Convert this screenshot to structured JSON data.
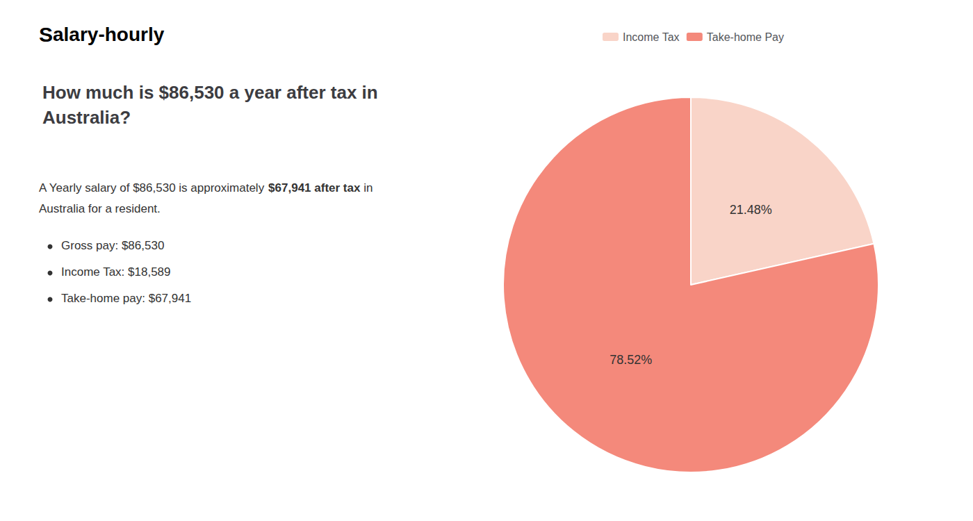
{
  "chart_data": {
    "type": "pie",
    "title": "How much is $86,530 a year after tax in Australia?",
    "annotations": [
      "S",
      "alary-hourly",
      "A Yearly salary of $86,530 is approximately ",
      "$67,941 after tax",
      " in",
      "Australia for a resident.",
      "Gross pay: $86,530",
      "Income Tax: $18,589",
      "Take-home pay: $67,941"
    ],
    "categories": [
      "Income Tax",
      "Take-home Pay"
    ],
    "values": [
      21.48,
      78.52
    ],
    "value_labels": [
      "21.48%",
      "78.52%"
    ],
    "colors": [
      "#f9d4c8",
      "#f4897b"
    ],
    "data_labels": true,
    "legend": "top"
  }
}
